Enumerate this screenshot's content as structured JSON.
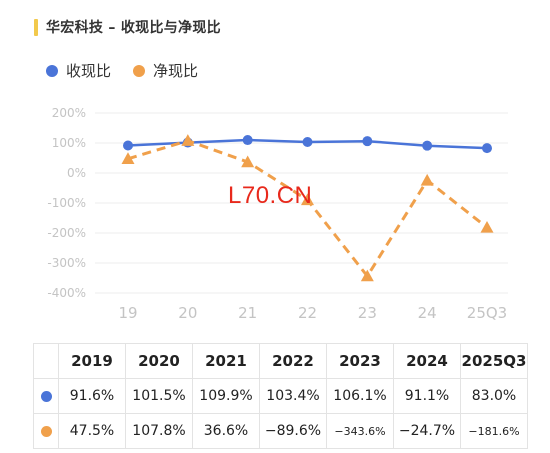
{
  "title": "华宏科技 – 收现比与净现比",
  "legend": [
    {
      "name": "收现比",
      "color": "#4a74d8"
    },
    {
      "name": "净现比",
      "color": "#f0a04b"
    }
  ],
  "watermark": "L70.CN",
  "chart_data": {
    "type": "line",
    "categories": [
      "19",
      "20",
      "21",
      "22",
      "23",
      "24",
      "25Q3"
    ],
    "yticks": [
      "200%",
      "100%",
      "0%",
      "-100%",
      "-200%",
      "-300%",
      "-400%"
    ],
    "ylim": [
      -400,
      200
    ],
    "series": [
      {
        "name": "收现比",
        "values": [
          91.6,
          101.5,
          109.9,
          103.4,
          106.1,
          91.1,
          83.0
        ],
        "color": "#4a74d8",
        "marker": "circle",
        "line": "solid"
      },
      {
        "name": "净现比",
        "values": [
          47.5,
          107.8,
          36.6,
          -89.6,
          -343.6,
          -24.7,
          -181.6
        ],
        "color": "#f0a04b",
        "marker": "triangle",
        "line": "dashed"
      }
    ],
    "grid": true
  },
  "table": {
    "headers": [
      "2019",
      "2020",
      "2021",
      "2022",
      "2023",
      "2024",
      "2025Q3"
    ],
    "rows": [
      {
        "color": "#4a74d8",
        "cells": [
          "91.6%",
          "101.5%",
          "109.9%",
          "103.4%",
          "106.1%",
          "91.1%",
          "83.0%"
        ]
      },
      {
        "color": "#f0a04b",
        "cells": [
          "47.5%",
          "107.8%",
          "36.6%",
          "−89.6%",
          "−343.6%",
          "−24.7%",
          "−181.6%"
        ]
      }
    ]
  }
}
